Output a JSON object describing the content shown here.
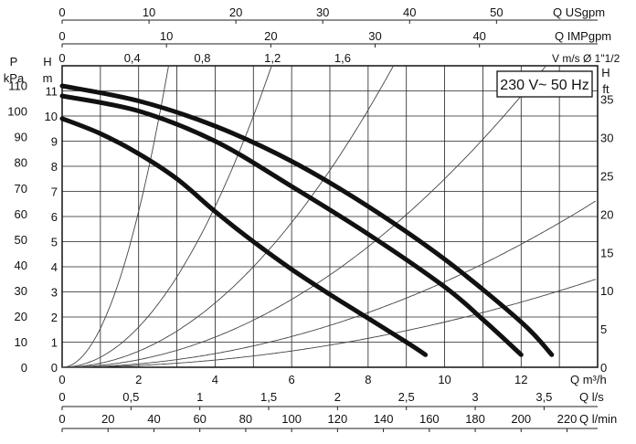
{
  "chart_data": {
    "type": "line",
    "title": "",
    "badge": "230 V~ 50 Hz",
    "grid": true,
    "x_primary": {
      "label": "Q m³/h",
      "range": [
        0,
        14
      ],
      "ticks": [
        0,
        2,
        4,
        6,
        8,
        10,
        12
      ],
      "tick_labels": [
        "0",
        "2",
        "4",
        "6",
        "8",
        "10",
        "12"
      ]
    },
    "y_primary": {
      "label_line1": "H",
      "label_line2": "m",
      "range": [
        0,
        12
      ],
      "ticks": [
        0,
        1,
        2,
        3,
        4,
        5,
        6,
        7,
        8,
        9,
        10,
        11
      ],
      "tick_labels": [
        "0",
        "1",
        "2",
        "3",
        "4",
        "5",
        "6",
        "7",
        "8",
        "9",
        "10",
        "11"
      ]
    },
    "y_pressure": {
      "label_line1": "P",
      "label_line2": "kPa",
      "ticks": [
        0,
        10,
        20,
        30,
        40,
        50,
        60,
        70,
        80,
        90,
        100,
        110
      ],
      "tick_labels": [
        "0",
        "10",
        "20",
        "30",
        "40",
        "50",
        "60",
        "70",
        "80",
        "90",
        "100",
        "110"
      ]
    },
    "y_feet": {
      "label_line1": "H",
      "label_line2": "ft",
      "ticks": [
        0,
        5,
        10,
        15,
        20,
        25,
        30,
        35
      ],
      "tick_labels": [
        "0",
        "5",
        "10",
        "15",
        "20",
        "25",
        "30",
        "35"
      ]
    },
    "x_usgpm": {
      "label": "Q USgpm",
      "ticks": [
        0,
        10,
        20,
        30,
        40,
        50
      ],
      "tick_labels": [
        "0",
        "10",
        "20",
        "30",
        "40",
        "50"
      ]
    },
    "x_impgpm": {
      "label": "Q IMPgpm",
      "ticks": [
        0,
        10,
        20,
        30,
        40
      ],
      "tick_labels": [
        "0",
        "10",
        "20",
        "30",
        "40"
      ]
    },
    "x_velocity": {
      "label": "V m/s Ø 1\"1/2",
      "ticks": [
        0,
        0.4,
        0.8,
        1.2,
        1.6
      ],
      "tick_labels": [
        "0",
        "0,4",
        "0,8",
        "1,2",
        "1,6"
      ]
    },
    "x_ls": {
      "label": "Q l/s",
      "ticks": [
        0,
        0.5,
        1,
        1.5,
        2,
        2.5,
        3,
        3.5
      ],
      "tick_labels": [
        "0",
        "0,5",
        "1",
        "1,5",
        "2",
        "2,5",
        "3",
        "3,5"
      ]
    },
    "x_lmin": {
      "label": "Q l/min",
      "ticks": [
        0,
        20,
        40,
        60,
        80,
        100,
        120,
        140,
        160,
        180,
        200,
        220
      ],
      "tick_labels": [
        "0",
        "20",
        "40",
        "60",
        "80",
        "100",
        "120",
        "140",
        "160",
        "180",
        "200",
        "220"
      ]
    },
    "series": [
      {
        "x": [
          0,
          1,
          2,
          3,
          4,
          5,
          6,
          7,
          8,
          9,
          9.5
        ],
        "y": [
          9.9,
          9.3,
          8.5,
          7.5,
          6.2,
          5.0,
          3.9,
          2.9,
          1.95,
          1.0,
          0.5
        ]
      },
      {
        "x": [
          0,
          2,
          4,
          6,
          8,
          10,
          11,
          12
        ],
        "y": [
          10.8,
          10.2,
          9.0,
          7.2,
          5.3,
          3.2,
          1.9,
          0.5
        ]
      },
      {
        "x": [
          0,
          2,
          4,
          6,
          8,
          10,
          12,
          12.8
        ],
        "y": [
          11.2,
          10.6,
          9.6,
          8.2,
          6.4,
          4.3,
          1.8,
          0.5
        ]
      }
    ],
    "system_curves_k": [
      1.55,
      0.4,
      0.16,
      0.075,
      0.034,
      0.018
    ]
  }
}
